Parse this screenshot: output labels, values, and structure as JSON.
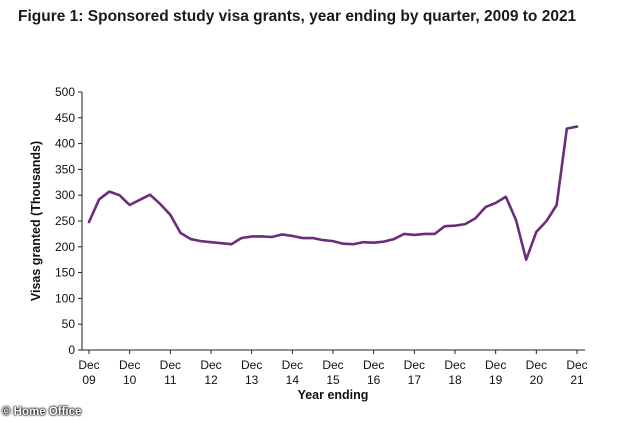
{
  "chart_data": {
    "type": "line",
    "title": "Figure 1: Sponsored study visa grants, year ending by quarter, 2009 to 2021",
    "xlabel": "Year ending",
    "ylabel": "Visas granted (Thousands)",
    "ylim": [
      0,
      500
    ],
    "yticks": [
      "0",
      "50",
      "100",
      "150",
      "200",
      "250",
      "300",
      "350",
      "400",
      "450",
      "500"
    ],
    "x_tick_labels": [
      {
        "top": "Dec",
        "bottom": "09"
      },
      {
        "top": "Dec",
        "bottom": "10"
      },
      {
        "top": "Dec",
        "bottom": "11"
      },
      {
        "top": "Dec",
        "bottom": "12"
      },
      {
        "top": "Dec",
        "bottom": "13"
      },
      {
        "top": "Dec",
        "bottom": "14"
      },
      {
        "top": "Dec",
        "bottom": "15"
      },
      {
        "top": "Dec",
        "bottom": "16"
      },
      {
        "top": "Dec",
        "bottom": "17"
      },
      {
        "top": "Dec",
        "bottom": "18"
      },
      {
        "top": "Dec",
        "bottom": "19"
      },
      {
        "top": "Dec",
        "bottom": "20"
      },
      {
        "top": "Dec",
        "bottom": "21"
      }
    ],
    "grid": false,
    "line_color": "#6b2d7b",
    "series": [
      {
        "name": "Sponsored study visa grants",
        "values": [
          248,
          292,
          307,
          300,
          281,
          291,
          301,
          283,
          262,
          227,
          215,
          211,
          209,
          207,
          205,
          217,
          220,
          220,
          219,
          224,
          221,
          217,
          217,
          213,
          211,
          206,
          205,
          209,
          208,
          210,
          215,
          225,
          223,
          225,
          225,
          240,
          241,
          244,
          255,
          277,
          285,
          297,
          252,
          175,
          229,
          250,
          281,
          429,
          433
        ]
      }
    ]
  },
  "credit": "© Home Office"
}
